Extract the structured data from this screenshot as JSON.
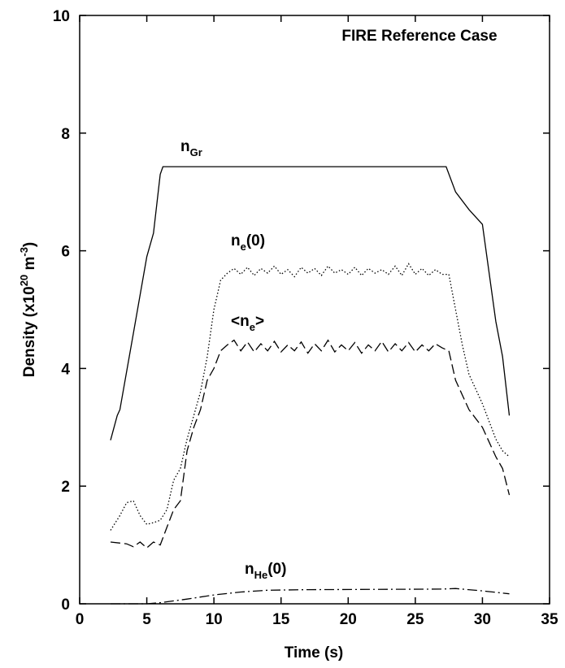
{
  "chart_data": {
    "type": "line",
    "annotation": "FIRE Reference Case",
    "xlabel": "Time (s)",
    "ylabel_parts": [
      "Density (x10",
      "20",
      " m",
      "-3",
      ")"
    ],
    "xlim": [
      0,
      35
    ],
    "xticks": [
      0,
      5,
      10,
      15,
      20,
      25,
      30,
      35
    ],
    "ylim": [
      0,
      10
    ],
    "yticks": [
      0,
      2,
      4,
      6,
      8,
      10
    ],
    "grid": false,
    "series": [
      {
        "name": "n",
        "name_sub": "Gr",
        "color": "#000000",
        "dash": "solid",
        "x": [
          2.3,
          2.8,
          3,
          4,
          5,
          5.5,
          6,
          6.2,
          27.3,
          28,
          29,
          30,
          31,
          31.5,
          32
        ],
        "values": [
          2.78,
          3.2,
          3.3,
          4.6,
          5.9,
          6.3,
          7.3,
          7.43,
          7.43,
          7.0,
          6.7,
          6.45,
          4.8,
          4.2,
          3.2
        ]
      },
      {
        "name": "n",
        "name_sub": "e",
        "name_suffix": "(0)",
        "color": "#000000",
        "dash": "dotted",
        "x": [
          2.3,
          3,
          3.5,
          4,
          4.5,
          5,
          5.5,
          6,
          6.5,
          7,
          7.5,
          8,
          8.5,
          9,
          9.5,
          10,
          10.5,
          11,
          11.5,
          12,
          12.5,
          13,
          13.5,
          14,
          14.5,
          15,
          15.5,
          16,
          16.5,
          17,
          17.5,
          18,
          18.5,
          19,
          19.5,
          20,
          20.5,
          21,
          21.5,
          22,
          22.5,
          23,
          23.5,
          24,
          24.5,
          25,
          25.5,
          26,
          26.5,
          27,
          27.5,
          28,
          28.5,
          29,
          30,
          31,
          31.5,
          32
        ],
        "values": [
          1.25,
          1.5,
          1.72,
          1.75,
          1.5,
          1.35,
          1.38,
          1.42,
          1.6,
          2.1,
          2.3,
          2.8,
          3.2,
          3.6,
          4.2,
          5.0,
          5.5,
          5.62,
          5.7,
          5.6,
          5.72,
          5.58,
          5.7,
          5.62,
          5.74,
          5.6,
          5.68,
          5.56,
          5.72,
          5.62,
          5.7,
          5.58,
          5.74,
          5.62,
          5.68,
          5.6,
          5.72,
          5.58,
          5.7,
          5.62,
          5.68,
          5.6,
          5.74,
          5.58,
          5.78,
          5.6,
          5.7,
          5.58,
          5.68,
          5.6,
          5.6,
          5.0,
          4.4,
          3.9,
          3.4,
          2.8,
          2.6,
          2.5
        ]
      },
      {
        "name": "n",
        "name_prefix": "<",
        "name_sub": "e",
        "name_suffix": ">",
        "color": "#000000",
        "dash": "dashed",
        "x": [
          2.3,
          3.5,
          4,
          4.5,
          5,
          5.5,
          6,
          6.5,
          7,
          7.5,
          8,
          8.5,
          9,
          9.5,
          10,
          10.5,
          11,
          11.5,
          12,
          12.5,
          13,
          13.5,
          14,
          14.5,
          15,
          15.5,
          16,
          16.5,
          17,
          17.5,
          18,
          18.5,
          19,
          19.5,
          20,
          20.5,
          21,
          21.5,
          22,
          22.5,
          23,
          23.5,
          24,
          24.5,
          25,
          25.5,
          26,
          26.5,
          27,
          27.5,
          28,
          29,
          30,
          31,
          31.5,
          32
        ],
        "values": [
          1.05,
          1.02,
          0.97,
          1.05,
          0.95,
          1.05,
          1.0,
          1.3,
          1.6,
          1.75,
          2.6,
          3.0,
          3.3,
          3.8,
          4.0,
          4.3,
          4.4,
          4.48,
          4.3,
          4.45,
          4.28,
          4.42,
          4.3,
          4.46,
          4.28,
          4.4,
          4.3,
          4.45,
          4.26,
          4.42,
          4.3,
          4.48,
          4.28,
          4.4,
          4.3,
          4.44,
          4.26,
          4.4,
          4.3,
          4.46,
          4.28,
          4.42,
          4.3,
          4.44,
          4.28,
          4.4,
          4.3,
          4.42,
          4.35,
          4.3,
          3.8,
          3.3,
          3.0,
          2.5,
          2.3,
          1.85
        ]
      },
      {
        "name": "n",
        "name_sub": "He",
        "name_suffix": "(0)",
        "color": "#000000",
        "dash": "dashdot",
        "x": [
          2.3,
          5,
          6,
          8,
          10,
          12,
          14,
          17,
          27,
          28,
          30,
          32
        ],
        "values": [
          0,
          0,
          0.02,
          0.08,
          0.15,
          0.2,
          0.23,
          0.24,
          0.25,
          0.26,
          0.22,
          0.17
        ]
      }
    ]
  }
}
